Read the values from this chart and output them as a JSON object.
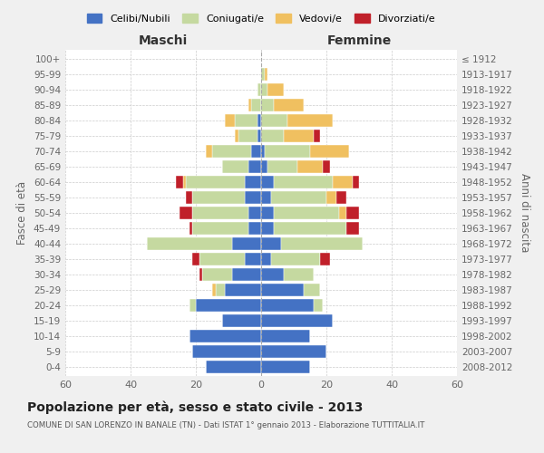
{
  "age_groups": [
    "0-4",
    "5-9",
    "10-14",
    "15-19",
    "20-24",
    "25-29",
    "30-34",
    "35-39",
    "40-44",
    "45-49",
    "50-54",
    "55-59",
    "60-64",
    "65-69",
    "70-74",
    "75-79",
    "80-84",
    "85-89",
    "90-94",
    "95-99",
    "100+"
  ],
  "birth_years": [
    "2008-2012",
    "2003-2007",
    "1998-2002",
    "1993-1997",
    "1988-1992",
    "1983-1987",
    "1978-1982",
    "1973-1977",
    "1968-1972",
    "1963-1967",
    "1958-1962",
    "1953-1957",
    "1948-1952",
    "1943-1947",
    "1938-1942",
    "1933-1937",
    "1928-1932",
    "1923-1927",
    "1918-1922",
    "1913-1917",
    "≤ 1912"
  ],
  "maschi": {
    "celibi": [
      17,
      21,
      22,
      12,
      20,
      11,
      9,
      5,
      9,
      4,
      4,
      5,
      5,
      4,
      3,
      1,
      1,
      0,
      0,
      0,
      0
    ],
    "coniugati": [
      0,
      0,
      0,
      0,
      2,
      3,
      9,
      14,
      26,
      17,
      17,
      16,
      18,
      8,
      12,
      6,
      7,
      3,
      1,
      0,
      0
    ],
    "vedovi": [
      0,
      0,
      0,
      0,
      0,
      1,
      0,
      0,
      0,
      0,
      0,
      0,
      1,
      0,
      2,
      1,
      3,
      1,
      0,
      0,
      0
    ],
    "divorziati": [
      0,
      0,
      0,
      0,
      0,
      0,
      1,
      2,
      0,
      1,
      4,
      2,
      2,
      0,
      0,
      0,
      0,
      0,
      0,
      0,
      0
    ]
  },
  "femmine": {
    "nubili": [
      15,
      20,
      15,
      22,
      16,
      13,
      7,
      3,
      6,
      4,
      4,
      3,
      4,
      2,
      1,
      0,
      0,
      0,
      0,
      0,
      0
    ],
    "coniugate": [
      0,
      0,
      0,
      0,
      3,
      5,
      9,
      15,
      25,
      22,
      20,
      17,
      18,
      9,
      14,
      7,
      8,
      4,
      2,
      1,
      0
    ],
    "vedove": [
      0,
      0,
      0,
      0,
      0,
      0,
      0,
      0,
      0,
      0,
      2,
      3,
      6,
      8,
      12,
      9,
      14,
      9,
      5,
      1,
      0
    ],
    "divorziate": [
      0,
      0,
      0,
      0,
      0,
      0,
      0,
      3,
      0,
      4,
      4,
      3,
      2,
      2,
      0,
      2,
      0,
      0,
      0,
      0,
      0
    ]
  },
  "color_celibi": "#4472c4",
  "color_coniugati": "#c5d9a0",
  "color_vedovi": "#f0c060",
  "color_divorziati": "#c0202a",
  "xlim": 60,
  "title": "Popolazione per età, sesso e stato civile - 2013",
  "subtitle": "COMUNE DI SAN LORENZO IN BANALE (TN) - Dati ISTAT 1° gennaio 2013 - Elaborazione TUTTITALIA.IT",
  "ylabel_left": "Fasce di età",
  "ylabel_right": "Anni di nascita",
  "header_left": "Maschi",
  "header_right": "Femmine",
  "bg_color": "#f0f0f0",
  "plot_bg": "#ffffff"
}
